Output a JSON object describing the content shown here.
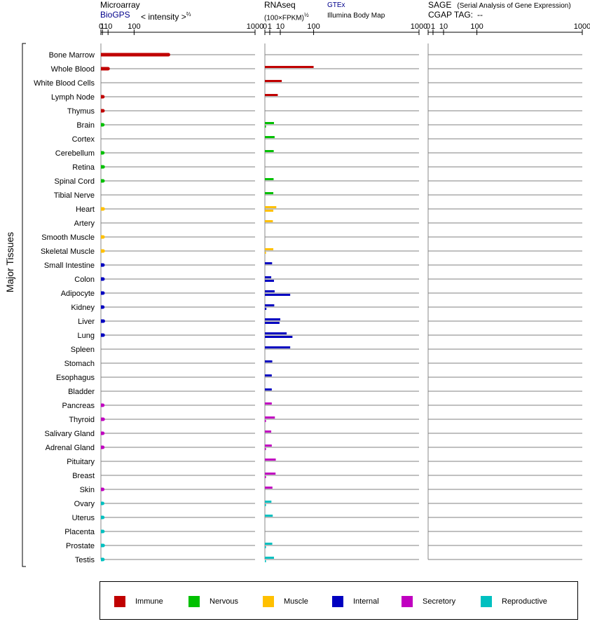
{
  "headers": {
    "microarray": "Microarray",
    "biogps": "BioGPS",
    "intensity": "< intensity >",
    "intensity_exp": "⅔",
    "rnaseq": "RNAseq",
    "fpkm": "(100×FPKM)",
    "fpkm_exp": "½",
    "gtex": "GTEx",
    "illumina": "Illumina Body Map",
    "sage": "SAGE",
    "sage_desc": "(Serial Analysis of Gene Expression)",
    "cgap": "CGAP TAG:",
    "cgap_value": "--"
  },
  "colors": {
    "Immune": "#c00000",
    "Nervous": "#00c000",
    "Muscle": "#ffc000",
    "Internal": "#0000c0",
    "Secretory": "#c000c0",
    "Reproductive": "#00c0c0"
  },
  "chart_data": {
    "type": "bar",
    "ylabel": "Major Tissues",
    "axis_ticks": [
      "0",
      "1",
      "10",
      "100",
      "1000"
    ],
    "panels": [
      {
        "name": "Microarray",
        "scale": "power-2/3",
        "xlim": [
          0,
          1000
        ]
      },
      {
        "name": "RNAseq",
        "scale": "power-1/2",
        "xlim": [
          0,
          1000
        ],
        "series": [
          "GTEx",
          "Illumina Body Map"
        ]
      },
      {
        "name": "SAGE",
        "xlim": [
          0,
          1000
        ]
      }
    ],
    "legend": [
      "Immune",
      "Nervous",
      "Muscle",
      "Internal",
      "Secretory",
      "Reproductive"
    ],
    "tissues": [
      {
        "name": "Bone Marrow",
        "group": "Immune",
        "microarray": 290,
        "gtex": null,
        "illumina": null
      },
      {
        "name": "Whole Blood",
        "group": "Immune",
        "microarray": 10,
        "gtex": 100,
        "illumina": null
      },
      {
        "name": "White Blood Cells",
        "group": "Immune",
        "microarray": null,
        "gtex": 12,
        "illumina": null
      },
      {
        "name": "Lymph Node",
        "group": "Immune",
        "microarray": 1.5,
        "gtex": 7,
        "illumina": null
      },
      {
        "name": "Thymus",
        "group": "Immune",
        "microarray": 1.6,
        "gtex": null,
        "illumina": null
      },
      {
        "name": "Brain",
        "group": "Nervous",
        "microarray": 1.4,
        "gtex": 3.5,
        "illumina": 0.05
      },
      {
        "name": "Cortex",
        "group": "Nervous",
        "microarray": null,
        "gtex": 4,
        "illumina": null
      },
      {
        "name": "Cerebellum",
        "group": "Nervous",
        "microarray": 1.4,
        "gtex": 3.3,
        "illumina": null
      },
      {
        "name": "Retina",
        "group": "Nervous",
        "microarray": 1.8,
        "gtex": null,
        "illumina": null
      },
      {
        "name": "Spinal Cord",
        "group": "Nervous",
        "microarray": 1.6,
        "gtex": 3.2,
        "illumina": null
      },
      {
        "name": "Tibial Nerve",
        "group": "Nervous",
        "microarray": null,
        "gtex": 3,
        "illumina": null
      },
      {
        "name": "Heart",
        "group": "Muscle",
        "microarray": 1.8,
        "gtex": 5.5,
        "illumina": 3
      },
      {
        "name": "Artery",
        "group": "Muscle",
        "microarray": null,
        "gtex": 2.7,
        "illumina": null
      },
      {
        "name": "Smooth Muscle",
        "group": "Muscle",
        "microarray": 1.7,
        "gtex": null,
        "illumina": null
      },
      {
        "name": "Skeletal Muscle",
        "group": "Muscle",
        "microarray": 1.8,
        "gtex": 3,
        "illumina": 0.05
      },
      {
        "name": "Small Intestine",
        "group": "Internal",
        "microarray": 1.6,
        "gtex": 2.2,
        "illumina": null
      },
      {
        "name": "Colon",
        "group": "Internal",
        "microarray": 1.6,
        "gtex": 1.7,
        "illumina": 3.5
      },
      {
        "name": "Adipocyte",
        "group": "Internal",
        "microarray": 1.6,
        "gtex": 4,
        "illumina": 27
      },
      {
        "name": "Kidney",
        "group": "Internal",
        "microarray": 1.4,
        "gtex": 3.7,
        "illumina": 0.1
      },
      {
        "name": "Liver",
        "group": "Internal",
        "microarray": 2,
        "gtex": 10,
        "illumina": 9
      },
      {
        "name": "Lung",
        "group": "Internal",
        "microarray": 1.8,
        "gtex": 20,
        "illumina": 32
      },
      {
        "name": "Spleen",
        "group": "Internal",
        "microarray": null,
        "gtex": 27,
        "illumina": null
      },
      {
        "name": "Stomach",
        "group": "Internal",
        "microarray": null,
        "gtex": 2.3,
        "illumina": null
      },
      {
        "name": "Esophagus",
        "group": "Internal",
        "microarray": null,
        "gtex": 2,
        "illumina": null
      },
      {
        "name": "Bladder",
        "group": "Internal",
        "microarray": null,
        "gtex": 2,
        "illumina": null
      },
      {
        "name": "Pancreas",
        "group": "Secretory",
        "microarray": 1.4,
        "gtex": 2,
        "illumina": null
      },
      {
        "name": "Thyroid",
        "group": "Secretory",
        "microarray": 1.8,
        "gtex": 4.2,
        "illumina": 0.05
      },
      {
        "name": "Salivary Gland",
        "group": "Secretory",
        "microarray": 1.4,
        "gtex": 1.7,
        "illumina": null
      },
      {
        "name": "Adrenal Gland",
        "group": "Secretory",
        "microarray": 1.4,
        "gtex": 2,
        "illumina": 0.05
      },
      {
        "name": "Pituitary",
        "group": "Secretory",
        "microarray": null,
        "gtex": 5,
        "illumina": null
      },
      {
        "name": "Breast",
        "group": "Secretory",
        "microarray": null,
        "gtex": 4.8,
        "illumina": 0.05
      },
      {
        "name": "Skin",
        "group": "Secretory",
        "microarray": 1.3,
        "gtex": 2.4,
        "illumina": null
      },
      {
        "name": "Ovary",
        "group": "Reproductive",
        "microarray": 1.2,
        "gtex": 1.8,
        "illumina": 0.05
      },
      {
        "name": "Uterus",
        "group": "Reproductive",
        "microarray": 1.4,
        "gtex": 2.6,
        "illumina": null
      },
      {
        "name": "Placenta",
        "group": "Reproductive",
        "microarray": 1.5,
        "gtex": null,
        "illumina": null
      },
      {
        "name": "Prostate",
        "group": "Reproductive",
        "microarray": 1.8,
        "gtex": 2.3,
        "illumina": 0.05
      },
      {
        "name": "Testis",
        "group": "Reproductive",
        "microarray": 1.5,
        "gtex": 3.5,
        "illumina": 0.05
      }
    ]
  }
}
